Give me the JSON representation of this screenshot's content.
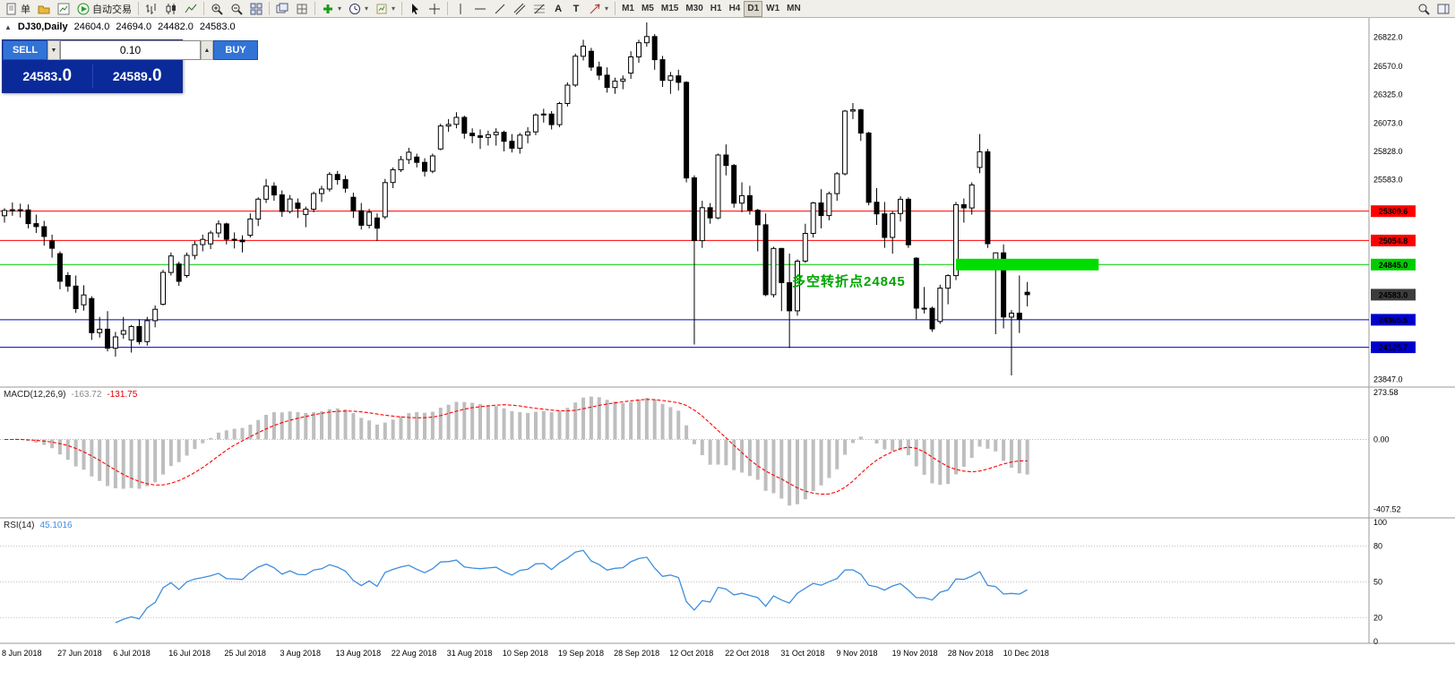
{
  "toolbar": {
    "new_order_label": "单",
    "autotrading_label": "自动交易",
    "timeframes": [
      "M1",
      "M5",
      "M15",
      "M30",
      "H1",
      "H4",
      "D1",
      "W1",
      "MN"
    ],
    "active_timeframe": "D1"
  },
  "chart_header": {
    "symbol": "DJ30,Daily",
    "open": "24604.0",
    "high": "24694.0",
    "low": "24482.0",
    "close": "24583.0"
  },
  "trade_panel": {
    "sell_label": "SELL",
    "buy_label": "BUY",
    "volume": "0.10",
    "sell_price_int": "24583",
    "sell_price_frac": ".0",
    "buy_price_int": "24589",
    "buy_price_frac": ".0"
  },
  "indicators": {
    "macd_name": "MACD(12,26,9)",
    "macd_main": "-163.72",
    "macd_signal": "-131.75",
    "rsi_name": "RSI(14)",
    "rsi_value": "45.1016"
  },
  "annotation": {
    "text": "多空转折点24845",
    "color": "#00a400"
  },
  "chart_data": {
    "type": "candlestick",
    "symbol": "DJ30",
    "timeframe": "Daily",
    "ylim": [
      23780,
      26990
    ],
    "y_ticks": [
      "26822.0",
      "26570.0",
      "26325.0",
      "26073.0",
      "25828.0",
      "25583.0",
      "23847.0"
    ],
    "x_labels": [
      "8 Jun 2018",
      "27 Jun 2018",
      "6 Jul 2018",
      "16 Jul 2018",
      "25 Jul 2018",
      "3 Aug 2018",
      "13 Aug 2018",
      "22 Aug 2018",
      "31 Aug 2018",
      "10 Sep 2018",
      "19 Sep 2018",
      "28 Sep 2018",
      "12 Oct 2018",
      "22 Oct 2018",
      "31 Oct 2018",
      "9 Nov 2018",
      "19 Nov 2018",
      "28 Nov 2018",
      "10 Dec 2018"
    ],
    "levels": [
      {
        "label": "25309.6",
        "price": 25309.6,
        "color": "#ff0000"
      },
      {
        "label": "25054.8",
        "price": 25054.8,
        "color": "#ff0000"
      },
      {
        "label": "24845.0",
        "price": 24845.0,
        "color": "#00cc00"
      },
      {
        "label": "24365.5",
        "price": 24365.5,
        "color": "#0000cc"
      },
      {
        "label": "24125.7",
        "price": 24125.7,
        "color": "#0000cc"
      }
    ],
    "current_price": {
      "label": "24583.0",
      "price": 24583.0,
      "color": "#3c3c3c"
    },
    "highlight_rect": {
      "price": 24845.0,
      "from_index": 120,
      "to_index": 138,
      "color": "#00dd00"
    },
    "macd": {
      "params": [
        12,
        26,
        9
      ],
      "ticks": [
        "273.58",
        "0.00",
        "-407.52"
      ],
      "ylim": [
        -458,
        301
      ],
      "hist_color": "#bebebe",
      "signal_color": "#ff0000"
    },
    "rsi": {
      "period": 14,
      "value": 45.1016,
      "ticks": [
        100,
        80,
        50,
        20,
        0
      ],
      "levels": [
        80,
        50,
        20
      ],
      "color": "#3e8ede"
    },
    "candles": [
      [
        25270,
        25335,
        25210,
        25316
      ],
      [
        25316,
        25385,
        25270,
        25322
      ],
      [
        25322,
        25375,
        25255,
        25320
      ],
      [
        25320,
        25368,
        25160,
        25201
      ],
      [
        25201,
        25280,
        25120,
        25175
      ],
      [
        25175,
        25225,
        25010,
        25090
      ],
      [
        25050,
        25105,
        24905,
        24987
      ],
      [
        24940,
        24960,
        24630,
        24700
      ],
      [
        24750,
        24780,
        24610,
        24658
      ],
      [
        24658,
        24750,
        24425,
        24462
      ],
      [
        24495,
        24665,
        24445,
        24581
      ],
      [
        24550,
        24570,
        24190,
        24253
      ],
      [
        24253,
        24390,
        24210,
        24283
      ],
      [
        24283,
        24440,
        24090,
        24118
      ],
      [
        24118,
        24260,
        24045,
        24216
      ],
      [
        24240,
        24390,
        24200,
        24271
      ],
      [
        24190,
        24320,
        24080,
        24307
      ],
      [
        24307,
        24370,
        24150,
        24175
      ],
      [
        24175,
        24390,
        24140,
        24357
      ],
      [
        24357,
        24490,
        24300,
        24456
      ],
      [
        24500,
        24800,
        24490,
        24777
      ],
      [
        24777,
        24950,
        24750,
        24920
      ],
      [
        24850,
        24870,
        24660,
        24700
      ],
      [
        24750,
        24950,
        24730,
        24925
      ],
      [
        24925,
        25050,
        24890,
        25019
      ],
      [
        25019,
        25105,
        24960,
        25064
      ],
      [
        25025,
        25140,
        24980,
        25120
      ],
      [
        25120,
        25230,
        25080,
        25199
      ],
      [
        25199,
        25210,
        25020,
        25065
      ],
      [
        25065,
        25125,
        24985,
        25058
      ],
      [
        25058,
        25100,
        24950,
        25044
      ],
      [
        25100,
        25290,
        25080,
        25242
      ],
      [
        25242,
        25430,
        25180,
        25414
      ],
      [
        25414,
        25590,
        25380,
        25527
      ],
      [
        25527,
        25560,
        25400,
        25451
      ],
      [
        25451,
        25490,
        25260,
        25307
      ],
      [
        25307,
        25450,
        25290,
        25415
      ],
      [
        25380,
        25420,
        25250,
        25334
      ],
      [
        25280,
        25350,
        25170,
        25327
      ],
      [
        25327,
        25480,
        25300,
        25463
      ],
      [
        25463,
        25530,
        25390,
        25502
      ],
      [
        25502,
        25650,
        25480,
        25629
      ],
      [
        25629,
        25660,
        25540,
        25584
      ],
      [
        25584,
        25620,
        25470,
        25509
      ],
      [
        25430,
        25470,
        25250,
        25313
      ],
      [
        25313,
        25380,
        25150,
        25187
      ],
      [
        25187,
        25330,
        25160,
        25300
      ],
      [
        25250,
        25290,
        25050,
        25162
      ],
      [
        25260,
        25590,
        25240,
        25558
      ],
      [
        25558,
        25690,
        25510,
        25669
      ],
      [
        25669,
        25790,
        25650,
        25758
      ],
      [
        25758,
        25860,
        25720,
        25822
      ],
      [
        25780,
        25810,
        25690,
        25734
      ],
      [
        25734,
        25770,
        25610,
        25657
      ],
      [
        25657,
        25810,
        25640,
        25790
      ],
      [
        25850,
        26070,
        25840,
        26050
      ],
      [
        26050,
        26110,
        26000,
        26064
      ],
      [
        26064,
        26170,
        26030,
        26125
      ],
      [
        26125,
        26140,
        25940,
        25987
      ],
      [
        25987,
        26030,
        25900,
        25965
      ],
      [
        25965,
        26020,
        25850,
        25952
      ],
      [
        25952,
        26010,
        25880,
        25975
      ],
      [
        25975,
        26030,
        25880,
        25995
      ],
      [
        25995,
        26010,
        25830,
        25917
      ],
      [
        25917,
        25980,
        25820,
        25857
      ],
      [
        25857,
        25990,
        25810,
        25971
      ],
      [
        25971,
        26040,
        25900,
        25999
      ],
      [
        25999,
        26160,
        25970,
        26146
      ],
      [
        26146,
        26200,
        26080,
        26154
      ],
      [
        26154,
        26180,
        26020,
        26062
      ],
      [
        26062,
        26260,
        26040,
        26246
      ],
      [
        26246,
        26430,
        26220,
        26406
      ],
      [
        26406,
        26680,
        26390,
        26657
      ],
      [
        26657,
        26800,
        26620,
        26744
      ],
      [
        26700,
        26730,
        26530,
        26562
      ],
      [
        26562,
        26610,
        26450,
        26492
      ],
      [
        26492,
        26560,
        26340,
        26385
      ],
      [
        26385,
        26470,
        26330,
        26440
      ],
      [
        26440,
        26490,
        26370,
        26458
      ],
      [
        26510,
        26700,
        26460,
        26651
      ],
      [
        26651,
        26800,
        26600,
        26774
      ],
      [
        26774,
        26951,
        26740,
        26828
      ],
      [
        26828,
        26850,
        26540,
        26627
      ],
      [
        26627,
        26660,
        26390,
        26447
      ],
      [
        26447,
        26520,
        26330,
        26486
      ],
      [
        26486,
        26540,
        26360,
        26430
      ],
      [
        26430,
        26440,
        25560,
        25599
      ],
      [
        25599,
        25620,
        24150,
        25053
      ],
      [
        25053,
        25400,
        24990,
        25340
      ],
      [
        25340,
        25380,
        25200,
        25251
      ],
      [
        25251,
        25810,
        25240,
        25798
      ],
      [
        25798,
        25890,
        25620,
        25707
      ],
      [
        25707,
        25720,
        25340,
        25379
      ],
      [
        25379,
        25560,
        25300,
        25444
      ],
      [
        25444,
        25530,
        25280,
        25317
      ],
      [
        25317,
        25330,
        24960,
        25191
      ],
      [
        25191,
        25290,
        24570,
        24583
      ],
      [
        24583,
        25000,
        24560,
        24985
      ],
      [
        24985,
        24990,
        24440,
        24688
      ],
      [
        24688,
        24940,
        24120,
        24443
      ],
      [
        24443,
        24890,
        24400,
        24875
      ],
      [
        24875,
        25200,
        24860,
        25116
      ],
      [
        25116,
        25390,
        25080,
        25381
      ],
      [
        25381,
        25500,
        25160,
        25271
      ],
      [
        25271,
        25480,
        25230,
        25462
      ],
      [
        25462,
        25650,
        25400,
        25635
      ],
      [
        25635,
        26190,
        25620,
        26180
      ],
      [
        26180,
        26250,
        26110,
        26191
      ],
      [
        26191,
        26200,
        25920,
        25989
      ],
      [
        25989,
        26000,
        25360,
        25387
      ],
      [
        25387,
        25510,
        25190,
        25286
      ],
      [
        25286,
        25390,
        24990,
        25081
      ],
      [
        25081,
        25310,
        24940,
        25289
      ],
      [
        25289,
        25440,
        25220,
        25413
      ],
      [
        25413,
        25430,
        24990,
        25017
      ],
      [
        24900,
        24910,
        24370,
        24466
      ],
      [
        24466,
        24650,
        24420,
        24465
      ],
      [
        24465,
        24480,
        24260,
        24286
      ],
      [
        24350,
        24670,
        24330,
        24640
      ],
      [
        24640,
        24760,
        24500,
        24749
      ],
      [
        24749,
        25390,
        24710,
        25366
      ],
      [
        25366,
        25420,
        25210,
        25338
      ],
      [
        25338,
        25560,
        25280,
        25538
      ],
      [
        25690,
        25980,
        25640,
        25826
      ],
      [
        25826,
        25850,
        24990,
        25027
      ],
      [
        24830,
        24950,
        24240,
        24947
      ],
      [
        24947,
        25020,
        24290,
        24389
      ],
      [
        24389,
        24450,
        23881,
        24423
      ],
      [
        24423,
        24750,
        24250,
        24370
      ],
      [
        24604,
        24694,
        24482,
        24583
      ]
    ]
  }
}
